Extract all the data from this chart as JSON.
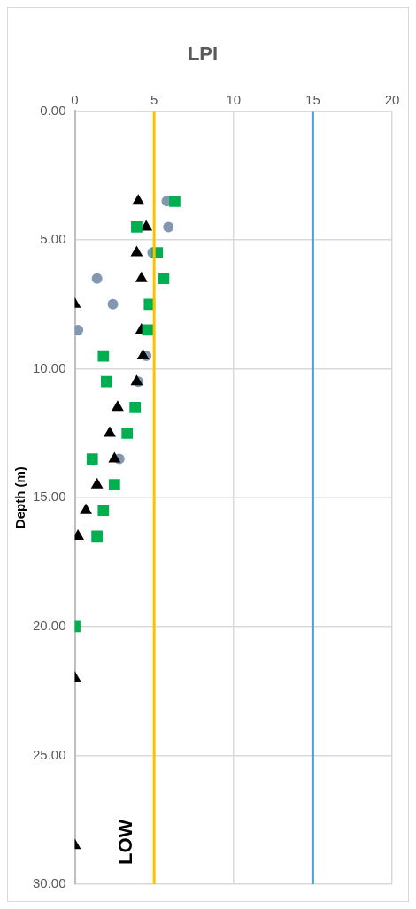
{
  "chart_data": {
    "type": "scatter",
    "title": "LPI",
    "ylabel": "Depth (m)",
    "xlim": [
      0,
      20
    ],
    "xticks": [
      0,
      5,
      10,
      15,
      20
    ],
    "ylim": [
      30,
      0
    ],
    "yticks": [
      {
        "value": 0,
        "label": "0.00"
      },
      {
        "value": 5,
        "label": "5.00"
      },
      {
        "value": 10,
        "label": "10.00"
      },
      {
        "value": 15,
        "label": "15.00"
      },
      {
        "value": 20,
        "label": "20.00"
      },
      {
        "value": 25,
        "label": "25.00"
      },
      {
        "value": 30,
        "label": "30.00"
      }
    ],
    "grid": true,
    "legend": false,
    "series": [
      {
        "color": "#8497b0",
        "marker": "circle",
        "x": [
          5.8,
          5.9,
          4.9,
          1.4,
          2.4,
          0.2,
          4.5,
          4.0,
          2.8
        ],
        "values": [
          3.5,
          4.5,
          5.5,
          6.5,
          7.5,
          8.5,
          9.5,
          10.5,
          13.5
        ]
      },
      {
        "color": "#000000",
        "marker": "triangle",
        "x": [
          4.0,
          4.5,
          3.9,
          4.2,
          0,
          4.2,
          4.3,
          3.9,
          2.7,
          2.2,
          2.5,
          1.4,
          0.7,
          0.2,
          0,
          0
        ],
        "values": [
          3.5,
          4.5,
          5.5,
          6.5,
          7.5,
          8.5,
          9.5,
          10.5,
          11.5,
          12.5,
          13.5,
          14.5,
          15.5,
          16.5,
          22,
          28.5
        ]
      },
      {
        "color": "#00b050",
        "marker": "square",
        "x": [
          6.3,
          3.9,
          5.2,
          5.6,
          4.7,
          4.6,
          1.8,
          2.0,
          3.8,
          3.3,
          1.1,
          2.5,
          1.8,
          1.4,
          0
        ],
        "values": [
          3.5,
          4.5,
          5.5,
          6.5,
          7.5,
          8.5,
          9.5,
          10.5,
          11.5,
          12.5,
          13.5,
          14.5,
          15.5,
          16.5,
          20
        ]
      }
    ],
    "ref_lines": [
      {
        "axis": "x",
        "value": 5,
        "color": "#ffc000"
      },
      {
        "axis": "x",
        "value": 15,
        "color": "#5b9bd5"
      }
    ],
    "annotations": [
      "LOW"
    ]
  }
}
